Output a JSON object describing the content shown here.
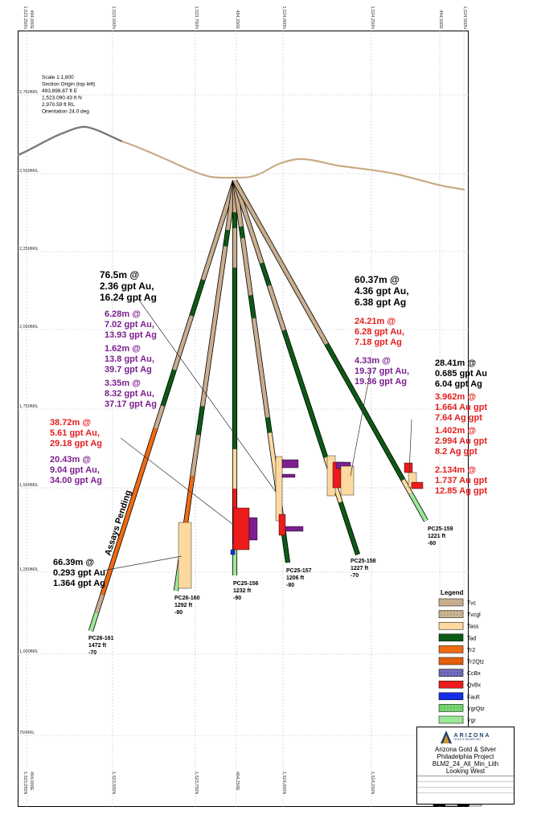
{
  "grid": {
    "top_labels": [
      "1,523,250N",
      "494,000E",
      "1,523,500N",
      "1,523,750N",
      "494,250E",
      "1,524,000N",
      "1,524,250N",
      "494,500E",
      "1,524,500N"
    ],
    "bottom_labels": [
      "1,523,250N",
      "494,000E",
      "1,523,500N",
      "1,523,750N",
      "494,250E",
      "1,524,000N",
      "1,524,250N",
      "494,500E",
      "1,524,500N"
    ],
    "rl_labels": [
      "2,750ftRL",
      "2,500ftRL",
      "2,250ftRL",
      "2,000ftRL",
      "1,750ftRL",
      "1,500ftRL",
      "1,250ftRL",
      "1,000ftRL",
      "750ftRL"
    ]
  },
  "scale_block": [
    "Scale 1:1,800",
    "Section Origin (top left)",
    "493,898.87 ft E",
    "1,523,090.43 ft N",
    "2,970.59 ft RL",
    "Orientation 24.0 deg"
  ],
  "holes": [
    {
      "id": "PC26-161",
      "length": "1472 ft",
      "dip": "-70"
    },
    {
      "id": "PC26-160",
      "length": "1292 ft",
      "dip": "-80"
    },
    {
      "id": "PC25-156",
      "length": "1232 ft",
      "dip": "-90"
    },
    {
      "id": "PC25-157",
      "length": "1206 ft",
      "dip": "-80"
    },
    {
      "id": "PC25-158",
      "length": "1227 ft",
      "dip": "-70"
    },
    {
      "id": "PC25-159",
      "length": "1221 ft",
      "dip": "-60"
    }
  ],
  "assays_pending": "Assays Pending",
  "intercepts": {
    "a": {
      "lines": [
        "76.5m @",
        "2.36 gpt Au,",
        "16.24 gpt Ag"
      ],
      "color": "#000000"
    },
    "b": {
      "lines": [
        "6.28m @",
        "7.02 gpt Au,",
        "13.93 gpt Ag"
      ],
      "color": "#7b1f8e"
    },
    "c": {
      "lines": [
        "1.62m @",
        "13.8 gpt Au,",
        "39.7 gpt Ag"
      ],
      "color": "#7b1f8e"
    },
    "d": {
      "lines": [
        "3.35m @",
        "8.32 gpt Au,",
        "37.17 gpt Ag"
      ],
      "color": "#7b1f8e"
    },
    "e": {
      "lines": [
        "38.72m @",
        "5.61 gpt Au,",
        "29.18 gpt Ag"
      ],
      "color": "#e41e1e"
    },
    "f": {
      "lines": [
        "20.43m @",
        "9.04 gpt Au,",
        "34.00 gpt Ag"
      ],
      "color": "#7b1f8e"
    },
    "g": {
      "lines": [
        "66.39m @",
        "0.293 gpt Au",
        "1.364 gpt Ag"
      ],
      "color": "#000000"
    },
    "h": {
      "lines": [
        "60.37m @",
        "4.36 gpt Au,",
        "6.38 gpt Ag"
      ],
      "color": "#000000"
    },
    "i": {
      "lines": [
        "24.21m @",
        "6.28 gpt Au,",
        "7.18 gpt Ag"
      ],
      "color": "#e41e1e"
    },
    "j": {
      "lines": [
        "4.33m @",
        "19.37 gpt Au,",
        "19.36 gpt Ag"
      ],
      "color": "#7b1f8e"
    },
    "k": {
      "lines": [
        "28.41m @",
        "0.685 gpt Au",
        "6.04 gpt Ag"
      ],
      "color": "#000000"
    },
    "l": {
      "lines": [
        "3.962m @",
        "1.664 Au gpt",
        "7.64 Ag gpt"
      ],
      "color": "#e41e1e"
    },
    "m": {
      "lines": [
        "1.402m @",
        "2.994 Au gpt",
        "8.2 Ag gpt"
      ],
      "color": "#e41e1e"
    },
    "n": {
      "lines": [
        "2.134m @",
        "1.737 Au gpt",
        "12.85 Ag gpt"
      ],
      "color": "#e41e1e"
    }
  },
  "legend": {
    "title": "Legend",
    "items": [
      {
        "label": "Tvc",
        "color": "#c8ad8e"
      },
      {
        "label": "Tvcgl",
        "color": "#c9b08f"
      },
      {
        "label": "Tass",
        "color": "#fdd9a0"
      },
      {
        "label": "Tad",
        "color": "#0d5a14"
      },
      {
        "label": "Tr2",
        "color": "#f06a12"
      },
      {
        "label": "Tr2Qtz",
        "color": "#f06a12"
      },
      {
        "label": "CcBx",
        "color": "#7b76c9"
      },
      {
        "label": "QvBx",
        "color": "#ec1c1c"
      },
      {
        "label": "Fault",
        "color": "#1330e6"
      },
      {
        "label": "YgrQtz",
        "color": "#7fe07a"
      },
      {
        "label": "Ygr",
        "color": "#9be897"
      }
    ]
  },
  "title_block": {
    "company": "ARIZONA",
    "company_sub": "GOLD & SILVER INC.",
    "lines": [
      "Arizona Gold & Silver",
      "Philadelphia Project",
      "BLM2_24_All_Min_Lith",
      "Looking West"
    ]
  }
}
